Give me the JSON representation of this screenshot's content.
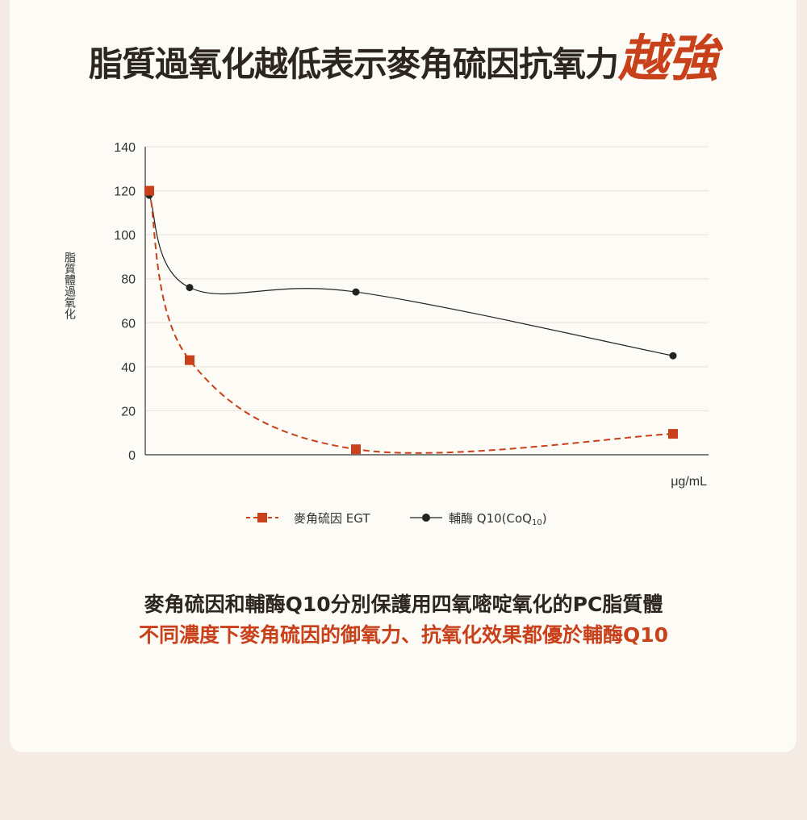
{
  "title": {
    "main": "脂質過氧化越低表示麥角硫因抗氧力",
    "accent": "越強"
  },
  "colors": {
    "accent": "#c8411b",
    "series_egt": "#c8411b",
    "series_coq10": "#222222",
    "grid": "#e6e2dc"
  },
  "chart_data": {
    "type": "line",
    "ylabel": "脂質體過氧化",
    "xlabel": "μg/mL",
    "ylim": [
      0,
      140
    ],
    "yticks": [
      0,
      20,
      40,
      60,
      80,
      100,
      120,
      140
    ],
    "grid": true,
    "legend_position": "bottom-center",
    "series": [
      {
        "name": "麥角硫因 EGT",
        "style": "dashed",
        "marker": "square",
        "color": "#c8411b",
        "points": [
          [
            0,
            120
          ],
          [
            1,
            43
          ],
          [
            5,
            2.5
          ],
          [
            13,
            9.5
          ]
        ]
      },
      {
        "name": "輔酶 Q10",
        "name_suffix": "(CoQ",
        "name_sub": "10",
        "name_close": ")",
        "style": "solid",
        "marker": "circle",
        "color": "#222222",
        "points": [
          [
            0,
            118
          ],
          [
            1,
            76
          ],
          [
            5,
            74
          ],
          [
            13,
            45
          ]
        ]
      }
    ]
  },
  "caption": {
    "line1": "麥角硫因和輔酶Q10分別保護用四氧嘧啶氧化的PC脂質體",
    "line2": "不同濃度下麥角硫因的御氧力、抗氧化效果都優於輔酶Q10"
  }
}
